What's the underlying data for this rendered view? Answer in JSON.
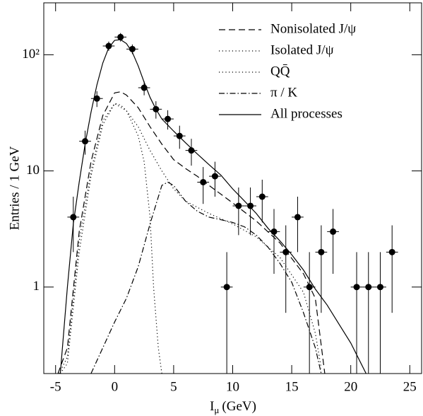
{
  "chart_data": {
    "type": "line",
    "ylabel": "Entries / 1 GeV",
    "xlabel": {
      "symbol": "I",
      "subscript": "μ",
      "unit": "(GeV)"
    },
    "xlim": [
      -6,
      26
    ],
    "ylim": [
      0.18,
      280
    ],
    "log_y": true,
    "xticks": [
      -5,
      0,
      5,
      10,
      15,
      20,
      25
    ],
    "yticks": [
      1,
      10,
      {
        "value": 100,
        "label": "10²"
      }
    ],
    "points": {
      "color": "#000000",
      "x": [
        -3.5,
        -2.5,
        -1.5,
        -0.5,
        0.5,
        1.5,
        2.5,
        3.5,
        4.5,
        5.5,
        6.5,
        7.5,
        8.5,
        9.5,
        10.5,
        11.5,
        12.5,
        13.5,
        14.5,
        15.5,
        16.5,
        17.5,
        18.5,
        20.5,
        21.5,
        22.5,
        23.5
      ],
      "values": [
        4,
        18,
        42,
        119,
        142,
        112,
        52,
        34,
        28,
        20,
        15,
        8,
        9,
        1,
        5,
        5,
        6,
        3,
        2,
        4,
        1,
        2,
        3,
        1,
        1,
        1,
        2
      ],
      "errors": [
        2,
        4.2,
        6.5,
        10.9,
        11.9,
        10.6,
        7.2,
        5.8,
        5.3,
        4.5,
        3.9,
        2.8,
        3,
        1,
        2.2,
        2.2,
        2.4,
        1.7,
        1.4,
        2,
        1,
        1.4,
        1.7,
        1,
        1,
        1,
        1.4
      ]
    },
    "series": [
      {
        "name": "Nonisolated J/ψ",
        "color": "#000000",
        "style": "dashed",
        "x": [
          -4.8,
          -4,
          -3,
          -2,
          -1,
          0,
          0.5,
          1,
          2,
          3,
          4,
          5,
          6,
          7,
          8,
          10,
          12,
          14,
          16,
          17,
          17.8
        ],
        "values": [
          0.18,
          0.3,
          3,
          12,
          30,
          47,
          48,
          45,
          35,
          24,
          17,
          12.5,
          10.5,
          9,
          7.5,
          5.3,
          3.7,
          2.4,
          1.3,
          0.8,
          0.18
        ]
      },
      {
        "name": "Isolated J/ψ",
        "color": "#000000",
        "style": "dotted",
        "x": [
          -4.6,
          -4,
          -3,
          -2,
          -1,
          0,
          0.5,
          1,
          2,
          2.5,
          3,
          3.3,
          3.7,
          4
        ],
        "values": [
          0.18,
          0.22,
          2,
          9,
          25,
          38,
          37,
          33,
          20,
          12,
          4,
          1,
          0.3,
          0.18
        ]
      },
      {
        "name": "QQ̄",
        "color": "#000000",
        "style": "dotted",
        "x": [
          -4.7,
          -4,
          -3,
          -2,
          -1,
          0,
          1,
          2,
          3,
          4,
          5,
          6,
          8,
          10,
          12,
          14,
          16,
          17,
          17.5
        ],
        "values": [
          0.18,
          0.25,
          2.5,
          10,
          27,
          38,
          33,
          24,
          15,
          10,
          7,
          5.5,
          4.3,
          3.5,
          2.7,
          1.8,
          0.9,
          0.4,
          0.2
        ]
      },
      {
        "name": "π / K",
        "color": "#000000",
        "style": "dashdot",
        "x": [
          -2,
          -1,
          0,
          1,
          2,
          3,
          4,
          4.5,
          5,
          6,
          7,
          8,
          9,
          10,
          11,
          12,
          13,
          14,
          15,
          16,
          17,
          17.5
        ],
        "values": [
          0.18,
          0.3,
          0.5,
          0.8,
          1.5,
          3.5,
          7.5,
          8,
          7.5,
          5.5,
          4.5,
          4,
          3.8,
          3.6,
          3.3,
          2.8,
          2.2,
          1.6,
          1.1,
          0.6,
          0.3,
          0.18
        ]
      },
      {
        "name": "All processes",
        "color": "#000000",
        "style": "solid",
        "x": [
          -4.6,
          -4,
          -3.5,
          -3,
          -2.5,
          -2,
          -1.5,
          -1,
          -0.5,
          0,
          0.5,
          1,
          1.5,
          2,
          2.5,
          3,
          3.5,
          4,
          5,
          6,
          7,
          8,
          9,
          10,
          11,
          12,
          13,
          14,
          15,
          16,
          17,
          18,
          19,
          20,
          21.3
        ],
        "values": [
          0.18,
          1,
          3.5,
          8,
          17,
          32,
          55,
          85,
          115,
          133,
          135,
          125,
          105,
          80,
          58,
          43,
          34,
          28,
          22,
          17.5,
          14,
          11.3,
          9.2,
          7,
          5.5,
          4.3,
          3.2,
          2.5,
          1.9,
          1.4,
          0.96,
          0.7,
          0.48,
          0.33,
          0.18
        ]
      }
    ]
  }
}
